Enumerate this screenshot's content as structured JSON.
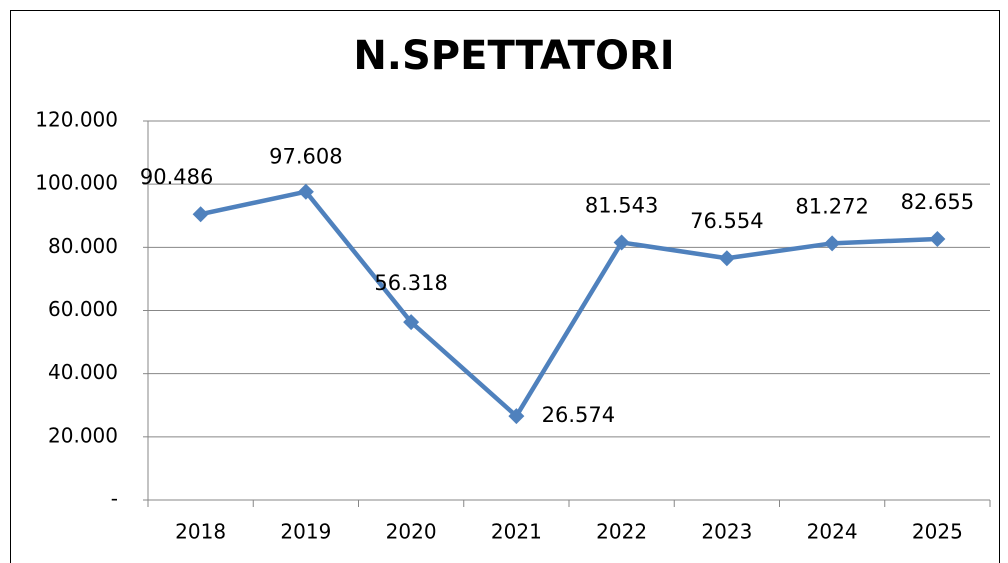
{
  "chart_data": {
    "type": "line",
    "title": "N.SPETTATORI",
    "categories": [
      "2018",
      "2019",
      "2020",
      "2021",
      "2022",
      "2023",
      "2024",
      "2025"
    ],
    "series": [
      {
        "name": "N.SPETTATORI",
        "color": "#4f81bd",
        "values": [
          90486,
          97608,
          56318,
          26574,
          81543,
          76554,
          81272,
          82655
        ],
        "value_labels": [
          "90.486",
          "97.608",
          "56.318",
          "26.574",
          "81.543",
          "76.554",
          "81.272",
          "82.655"
        ]
      }
    ],
    "ylim": [
      0,
      120000
    ],
    "yticks": [
      {
        "value": 0,
        "label": "-"
      },
      {
        "value": 20000,
        "label": "20.000"
      },
      {
        "value": 40000,
        "label": "40.000"
      },
      {
        "value": 60000,
        "label": "60.000"
      },
      {
        "value": 80000,
        "label": "80.000"
      },
      {
        "value": 100000,
        "label": "100.000"
      },
      {
        "value": 120000,
        "label": "120.000"
      }
    ],
    "grid": true
  }
}
